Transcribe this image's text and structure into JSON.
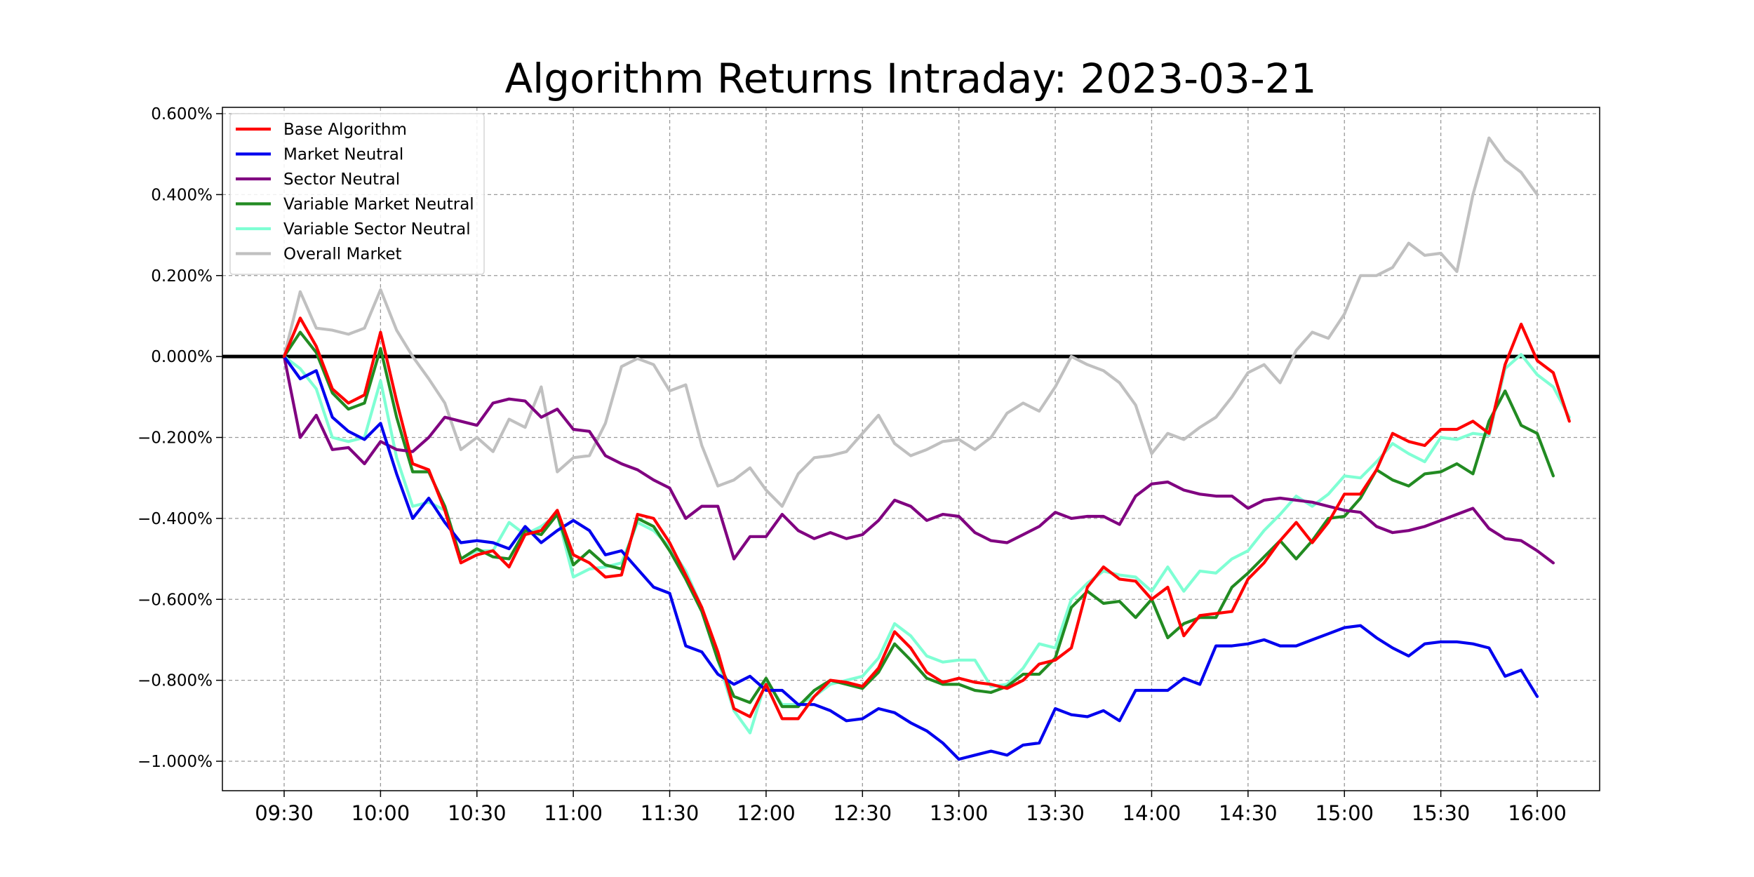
{
  "chart_data": {
    "type": "line",
    "title": "Algorithm Returns Intraday: 2023-03-21",
    "xlabel": "",
    "ylabel": "",
    "x_ticks": [
      "09:30",
      "10:00",
      "10:30",
      "11:00",
      "11:30",
      "12:00",
      "12:30",
      "13:00",
      "13:30",
      "14:00",
      "14:30",
      "15:00",
      "15:30",
      "16:00"
    ],
    "y_ticks": [
      0.6,
      0.4,
      0.2,
      0.0,
      -0.2,
      -0.4,
      -0.6,
      -0.8,
      -1.0
    ],
    "y_tick_labels": [
      "0.600%",
      "0.400%",
      "0.200%",
      "0.000%",
      "−0.200%",
      "−0.400%",
      "−0.600%",
      "−0.800%",
      "−1.000%"
    ],
    "x_range_minutes": [
      0,
      390
    ],
    "ylim": [
      -1.07,
      0.62
    ],
    "grid": true,
    "legend_position": "upper-left",
    "interval_minutes": 5,
    "series": [
      {
        "name": "Base Algorithm",
        "color": "#ff0000",
        "values": [
          0.0,
          0.095,
          0.025,
          -0.08,
          -0.115,
          -0.095,
          0.06,
          -0.11,
          -0.265,
          -0.28,
          -0.38,
          -0.51,
          -0.49,
          -0.48,
          -0.52,
          -0.44,
          -0.43,
          -0.38,
          -0.49,
          -0.51,
          -0.545,
          -0.54,
          -0.39,
          -0.4,
          -0.46,
          -0.54,
          -0.62,
          -0.73,
          -0.87,
          -0.89,
          -0.81,
          -0.895,
          -0.895,
          -0.84,
          -0.8,
          -0.805,
          -0.815,
          -0.77,
          -0.68,
          -0.72,
          -0.78,
          -0.805,
          -0.795,
          -0.805,
          -0.81,
          -0.82,
          -0.8,
          -0.76,
          -0.75,
          -0.72,
          -0.57,
          -0.52,
          -0.55,
          -0.555,
          -0.6,
          -0.57,
          -0.69,
          -0.64,
          -0.635,
          -0.63,
          -0.55,
          -0.51,
          -0.455,
          -0.41,
          -0.46,
          -0.41,
          -0.34,
          -0.34,
          -0.28,
          -0.19,
          -0.21,
          -0.22,
          -0.18,
          -0.18,
          -0.16,
          -0.19,
          -0.02,
          0.08,
          -0.01,
          -0.04,
          -0.16
        ]
      },
      {
        "name": "Market Neutral",
        "color": "#0000ee",
        "values": [
          0.0,
          -0.055,
          -0.035,
          -0.15,
          -0.185,
          -0.205,
          -0.165,
          -0.29,
          -0.4,
          -0.35,
          -0.41,
          -0.46,
          -0.455,
          -0.46,
          -0.475,
          -0.42,
          -0.46,
          -0.43,
          -0.405,
          -0.43,
          -0.49,
          -0.48,
          -0.525,
          -0.57,
          -0.585,
          -0.715,
          -0.73,
          -0.785,
          -0.81,
          -0.79,
          -0.825,
          -0.825,
          -0.86,
          -0.86,
          -0.875,
          -0.9,
          -0.895,
          -0.87,
          -0.88,
          -0.905,
          -0.925,
          -0.955,
          -0.995,
          -0.985,
          -0.975,
          -0.985,
          -0.96,
          -0.955,
          -0.87,
          -0.885,
          -0.89,
          -0.875,
          -0.9,
          -0.825,
          -0.825,
          -0.825,
          -0.795,
          -0.81,
          -0.715,
          -0.715,
          -0.71,
          -0.7,
          -0.715,
          -0.715,
          -0.7,
          -0.685,
          -0.67,
          -0.665,
          -0.695,
          -0.72,
          -0.74,
          -0.71,
          -0.705,
          -0.705,
          -0.71,
          -0.72,
          -0.79,
          -0.775,
          -0.84
        ]
      },
      {
        "name": "Sector Neutral",
        "color": "#800080",
        "values": [
          0.0,
          -0.2,
          -0.145,
          -0.23,
          -0.225,
          -0.265,
          -0.21,
          -0.23,
          -0.235,
          -0.2,
          -0.15,
          -0.16,
          -0.17,
          -0.115,
          -0.105,
          -0.11,
          -0.15,
          -0.13,
          -0.18,
          -0.185,
          -0.245,
          -0.265,
          -0.28,
          -0.305,
          -0.325,
          -0.4,
          -0.37,
          -0.37,
          -0.5,
          -0.445,
          -0.445,
          -0.39,
          -0.43,
          -0.45,
          -0.435,
          -0.45,
          -0.44,
          -0.405,
          -0.355,
          -0.37,
          -0.405,
          -0.39,
          -0.395,
          -0.435,
          -0.455,
          -0.46,
          -0.44,
          -0.42,
          -0.385,
          -0.4,
          -0.395,
          -0.395,
          -0.415,
          -0.345,
          -0.315,
          -0.31,
          -0.33,
          -0.34,
          -0.345,
          -0.345,
          -0.375,
          -0.355,
          -0.35,
          -0.355,
          -0.36,
          -0.37,
          -0.38,
          -0.385,
          -0.42,
          -0.435,
          -0.43,
          -0.42,
          -0.405,
          -0.39,
          -0.375,
          -0.425,
          -0.45,
          -0.455,
          -0.48,
          -0.51
        ]
      },
      {
        "name": "Variable Market Neutral",
        "color": "#228b22",
        "values": [
          0.0,
          0.06,
          0.01,
          -0.09,
          -0.13,
          -0.115,
          0.02,
          -0.15,
          -0.285,
          -0.285,
          -0.37,
          -0.5,
          -0.475,
          -0.495,
          -0.5,
          -0.43,
          -0.44,
          -0.39,
          -0.515,
          -0.48,
          -0.515,
          -0.525,
          -0.4,
          -0.42,
          -0.48,
          -0.55,
          -0.63,
          -0.75,
          -0.84,
          -0.855,
          -0.795,
          -0.865,
          -0.865,
          -0.825,
          -0.8,
          -0.81,
          -0.82,
          -0.78,
          -0.71,
          -0.75,
          -0.795,
          -0.81,
          -0.81,
          -0.825,
          -0.83,
          -0.815,
          -0.785,
          -0.785,
          -0.745,
          -0.62,
          -0.58,
          -0.61,
          -0.605,
          -0.645,
          -0.6,
          -0.695,
          -0.66,
          -0.645,
          -0.645,
          -0.57,
          -0.535,
          -0.495,
          -0.455,
          -0.5,
          -0.455,
          -0.4,
          -0.395,
          -0.35,
          -0.28,
          -0.305,
          -0.32,
          -0.29,
          -0.285,
          -0.265,
          -0.29,
          -0.16,
          -0.085,
          -0.17,
          -0.19,
          -0.295
        ]
      },
      {
        "name": "Variable Sector Neutral",
        "color": "#7fffd4",
        "values": [
          0.0,
          -0.03,
          -0.08,
          -0.2,
          -0.21,
          -0.2,
          -0.06,
          -0.25,
          -0.37,
          -0.36,
          -0.38,
          -0.5,
          -0.48,
          -0.48,
          -0.41,
          -0.44,
          -0.42,
          -0.39,
          -0.545,
          -0.525,
          -0.52,
          -0.51,
          -0.41,
          -0.43,
          -0.47,
          -0.53,
          -0.62,
          -0.75,
          -0.875,
          -0.93,
          -0.8,
          -0.86,
          -0.86,
          -0.84,
          -0.81,
          -0.8,
          -0.79,
          -0.745,
          -0.66,
          -0.69,
          -0.74,
          -0.755,
          -0.75,
          -0.75,
          -0.815,
          -0.81,
          -0.77,
          -0.71,
          -0.72,
          -0.6,
          -0.56,
          -0.53,
          -0.54,
          -0.545,
          -0.58,
          -0.52,
          -0.58,
          -0.53,
          -0.535,
          -0.5,
          -0.48,
          -0.43,
          -0.39,
          -0.345,
          -0.37,
          -0.34,
          -0.295,
          -0.3,
          -0.26,
          -0.215,
          -0.24,
          -0.26,
          -0.2,
          -0.205,
          -0.19,
          -0.195,
          -0.03,
          0.005,
          -0.045,
          -0.075,
          -0.15
        ]
      },
      {
        "name": "Overall Market",
        "color": "#c0c0c0",
        "values": [
          0.0,
          0.16,
          0.07,
          0.065,
          0.055,
          0.07,
          0.165,
          0.065,
          0.0,
          -0.055,
          -0.115,
          -0.23,
          -0.2,
          -0.235,
          -0.155,
          -0.175,
          -0.075,
          -0.285,
          -0.25,
          -0.245,
          -0.165,
          -0.025,
          -0.005,
          -0.02,
          -0.085,
          -0.07,
          -0.22,
          -0.32,
          -0.305,
          -0.275,
          -0.33,
          -0.37,
          -0.29,
          -0.25,
          -0.245,
          -0.235,
          -0.19,
          -0.145,
          -0.215,
          -0.245,
          -0.23,
          -0.21,
          -0.205,
          -0.23,
          -0.2,
          -0.14,
          -0.115,
          -0.135,
          -0.075,
          0.0,
          -0.02,
          -0.035,
          -0.065,
          -0.12,
          -0.24,
          -0.19,
          -0.205,
          -0.175,
          -0.15,
          -0.1,
          -0.04,
          -0.02,
          -0.065,
          0.015,
          0.06,
          0.045,
          0.105,
          0.2,
          0.2,
          0.22,
          0.28,
          0.25,
          0.255,
          0.21,
          0.4,
          0.54,
          0.485,
          0.455,
          0.4
        ]
      }
    ]
  }
}
